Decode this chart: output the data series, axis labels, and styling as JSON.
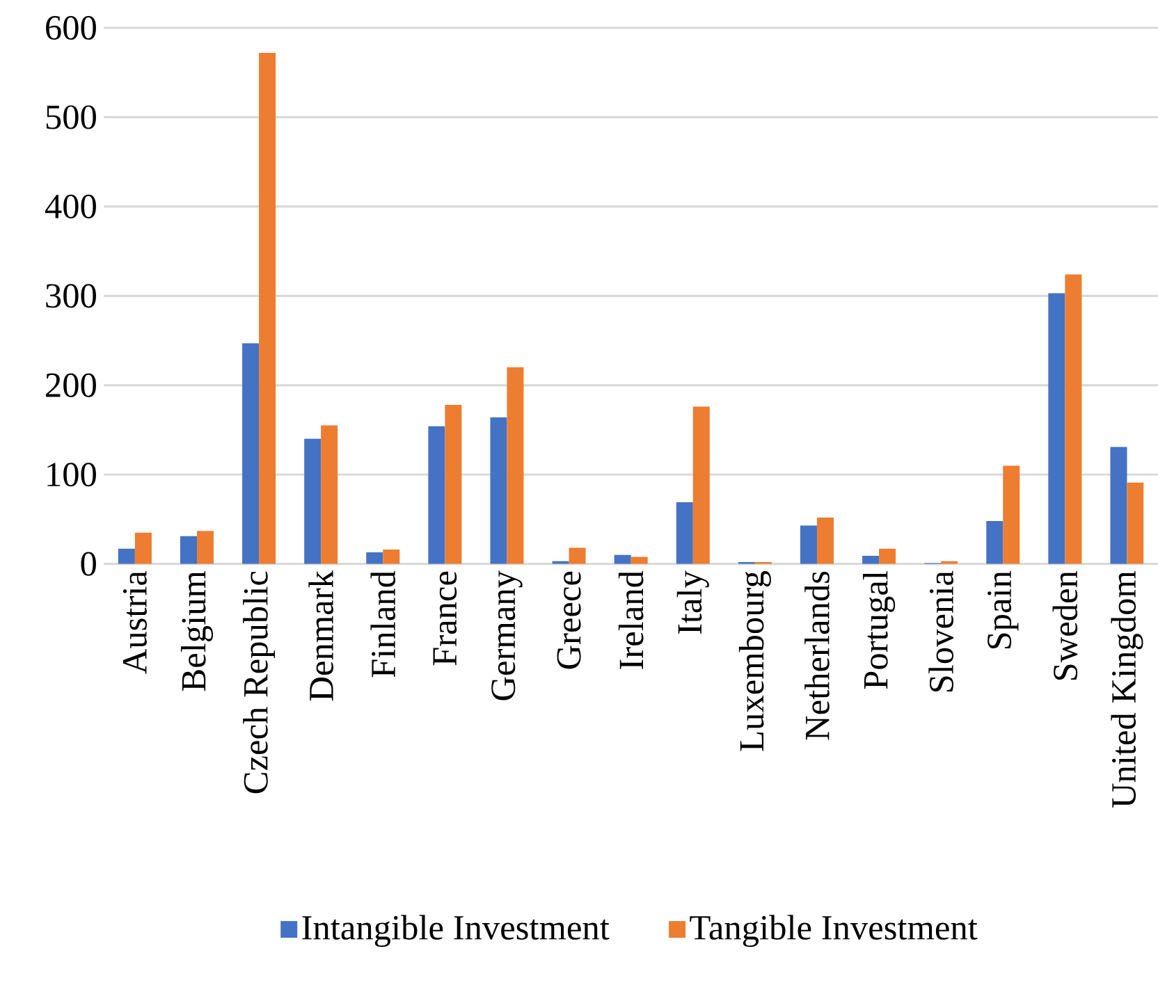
{
  "chart_data": {
    "type": "bar",
    "categories": [
      "Austria",
      "Belgium",
      "Czech Republic",
      "Denmark",
      "Finland",
      "France",
      "Germany",
      "Greece",
      "Ireland",
      "Italy",
      "Luxembourg",
      "Netherlands",
      "Portugal",
      "Slovenia",
      "Spain",
      "Sweden",
      "United Kingdom"
    ],
    "series": [
      {
        "name": "Intangible Investment",
        "color": "#4472c4",
        "values": [
          17,
          31,
          247,
          140,
          13,
          154,
          164,
          3,
          10,
          69,
          2,
          43,
          9,
          1,
          48,
          303,
          131
        ]
      },
      {
        "name": "Tangible Investment",
        "color": "#ed7d31",
        "values": [
          35,
          37,
          572,
          155,
          16,
          178,
          220,
          18,
          8,
          176,
          2,
          52,
          17,
          3,
          110,
          324,
          91
        ]
      }
    ],
    "ylim": [
      0,
      600
    ],
    "yticks": [
      0,
      100,
      200,
      300,
      400,
      500,
      600
    ],
    "grid": "y",
    "legend": "bottom"
  }
}
